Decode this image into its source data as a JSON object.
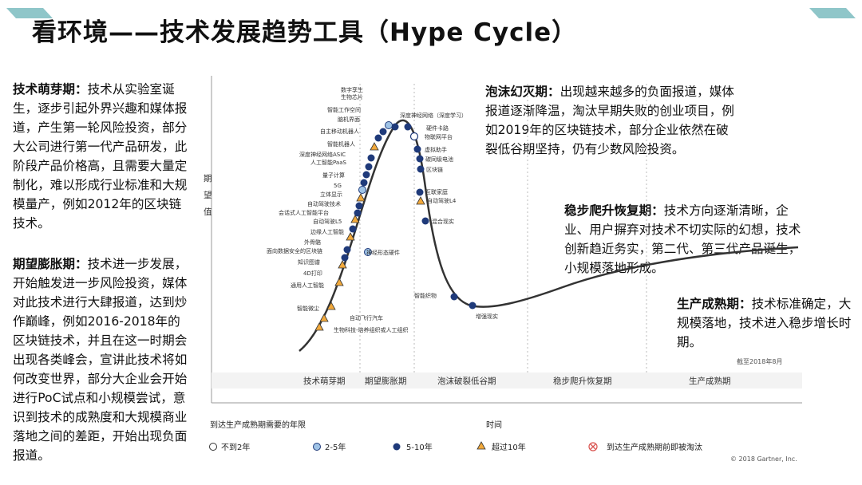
{
  "title": "看环境——技术发展趋势工具（Hype Cycle）",
  "phases_text": [
    {
      "name": "技术萌芽期：",
      "body": "技术从实验室诞生，逐步引起外界兴趣和媒体报道，产生第一轮风险投资，部分大公司进行第一代产品研发，此阶段产品价格高，且需要大量定制化，难以形成行业标准和大规模量产，例如2012年的区块链技术。"
    },
    {
      "name": "期望膨胀期：",
      "body": "技术进一步发展，开始触发进一步风险投资，媒体对此技术进行大肆报道，达到炒作巅峰，例如2016-2018年的区块链技术，并且在这一时期会出现各类峰会，宣讲此技术将如何改变世界，部分大企业会开始进行PoC试点和小规模尝试，意识到技术的成熟度和大规模商业落地之间的差距，开始出现负面报道。"
    },
    {
      "name": "泡沫幻灭期：",
      "body": "出现越来越多的负面报道，媒体报道逐渐降温，淘汰早期失败的创业项目，例如2019年的区块链技术，部分企业依然在破裂低谷期坚持，仍有少数风险投资。"
    },
    {
      "name": "稳步爬升恢复期：",
      "body": "技术方向逐渐清晰，企业、用户摒弃对技术不切实际的幻想，技术创新趋近务实，第二代、第三代产品诞生，小规模落地形成。"
    },
    {
      "name": "生产成熟期：",
      "body": "技术标准确定，大规模落地，技术进入稳步增长时期。"
    }
  ],
  "chart": {
    "y_axis_label": [
      "期",
      "望",
      "值"
    ],
    "x_axis_label": "时间",
    "phases": [
      "技术萌芽期",
      "期望膨胀期",
      "泡沫破裂低谷期",
      "稳步爬升恢复期",
      "生产成熟期"
    ],
    "as_of": "截至2018年8月",
    "copyright": "© 2018 Gartner, Inc.",
    "legend_title": "到达生产成熟期需要的年限",
    "legend": [
      {
        "label": "不到2年",
        "type": "circle",
        "color": "#ffffff"
      },
      {
        "label": "2-5年",
        "type": "circle",
        "color": "#9fc3e6"
      },
      {
        "label": "5-10年",
        "type": "circle",
        "color": "#1f3a7a"
      },
      {
        "label": "超过10年",
        "type": "triangle",
        "color": "#f2a93b"
      },
      {
        "label": "到达生产成熟期前即被淘汰",
        "type": "cross",
        "color": "#d9534f"
      }
    ],
    "tech_labels_left": [
      "数字孪生",
      "生物芯片",
      "智能工作空间",
      "脑机界面",
      "自主移动机器人",
      "智能机器人",
      "深度神经网络ASIC",
      "人工智能PaaS",
      "量子计算",
      "5G",
      "立体显示",
      "自动驾驶技术",
      "会话式人工智能平台",
      "自动驾驶L5",
      "边缘人工智能",
      "外骨骼",
      "面向数据安全的区块链",
      "知识图谱",
      "4D打印",
      "通用人工智能",
      "智能微尘",
      "自动飞行汽车",
      "生物科技-培养组织或人工组织"
    ],
    "tech_labels_right": [
      "深度神经网络（深度学习）",
      "硬件卡路",
      "物联网平台",
      "虚拟助手",
      "碳同级电池",
      "区块链",
      "互联家庭",
      "自动驾驶L4",
      "混合现实",
      "智能织物",
      "增强现实",
      "神经形态硬件"
    ],
    "peak_label": "深度神经网络（深度学习）"
  }
}
